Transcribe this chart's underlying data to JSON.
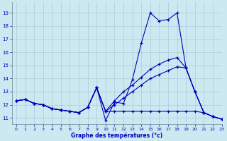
{
  "xlabel": "Graphe des températures (°c)",
  "bg_color": "#cce8f0",
  "grid_color": "#aaccdd",
  "line_color": "#0000bb",
  "ylim": [
    10.5,
    19.8
  ],
  "xlim": [
    -0.5,
    23
  ],
  "yticks": [
    11,
    12,
    13,
    14,
    15,
    16,
    17,
    18,
    19
  ],
  "xticks": [
    0,
    1,
    2,
    3,
    4,
    5,
    6,
    7,
    8,
    9,
    10,
    11,
    12,
    13,
    14,
    15,
    16,
    17,
    18,
    19,
    20,
    21,
    22,
    23
  ],
  "series": [
    {
      "x": [
        0,
        1,
        2,
        3,
        4,
        5,
        6,
        7,
        8,
        9,
        10,
        11,
        12,
        13,
        14,
        15,
        16,
        17,
        18,
        19,
        20,
        21,
        22,
        23
      ],
      "y": [
        12.3,
        12.4,
        12.1,
        12.0,
        11.7,
        11.6,
        11.5,
        11.4,
        11.8,
        13.3,
        10.8,
        12.2,
        12.1,
        13.9,
        16.7,
        19.0,
        18.4,
        18.5,
        19.0,
        14.8,
        13.0,
        11.4,
        11.1,
        10.9
      ]
    },
    {
      "x": [
        0,
        1,
        2,
        3,
        4,
        5,
        6,
        7,
        8,
        9,
        10,
        11,
        12,
        13,
        14,
        15,
        16,
        17,
        18,
        19,
        20,
        21,
        22,
        23
      ],
      "y": [
        12.3,
        12.4,
        12.1,
        12.0,
        11.7,
        11.6,
        11.5,
        11.4,
        11.8,
        13.3,
        11.5,
        11.5,
        11.5,
        11.5,
        11.5,
        11.5,
        11.5,
        11.5,
        11.5,
        11.5,
        11.5,
        11.4,
        11.1,
        10.9
      ]
    },
    {
      "x": [
        0,
        1,
        2,
        3,
        4,
        5,
        6,
        7,
        8,
        9,
        10,
        11,
        12,
        13,
        14,
        15,
        16,
        17,
        18,
        19,
        20,
        21,
        22,
        23
      ],
      "y": [
        12.3,
        12.4,
        12.1,
        12.0,
        11.7,
        11.6,
        11.5,
        11.4,
        11.8,
        13.3,
        11.5,
        12.0,
        12.5,
        13.0,
        13.5,
        14.0,
        14.3,
        14.6,
        14.9,
        14.8,
        13.0,
        11.4,
        11.1,
        10.9
      ]
    },
    {
      "x": [
        0,
        1,
        2,
        3,
        4,
        5,
        6,
        7,
        8,
        9,
        10,
        11,
        12,
        13,
        14,
        15,
        16,
        17,
        18,
        19,
        20,
        21,
        22,
        23
      ],
      "y": [
        12.3,
        12.4,
        12.1,
        12.0,
        11.7,
        11.6,
        11.5,
        11.4,
        11.8,
        13.3,
        11.5,
        12.3,
        13.0,
        13.5,
        14.1,
        14.7,
        15.1,
        15.4,
        15.6,
        14.8,
        13.0,
        11.4,
        11.1,
        10.9
      ]
    }
  ]
}
